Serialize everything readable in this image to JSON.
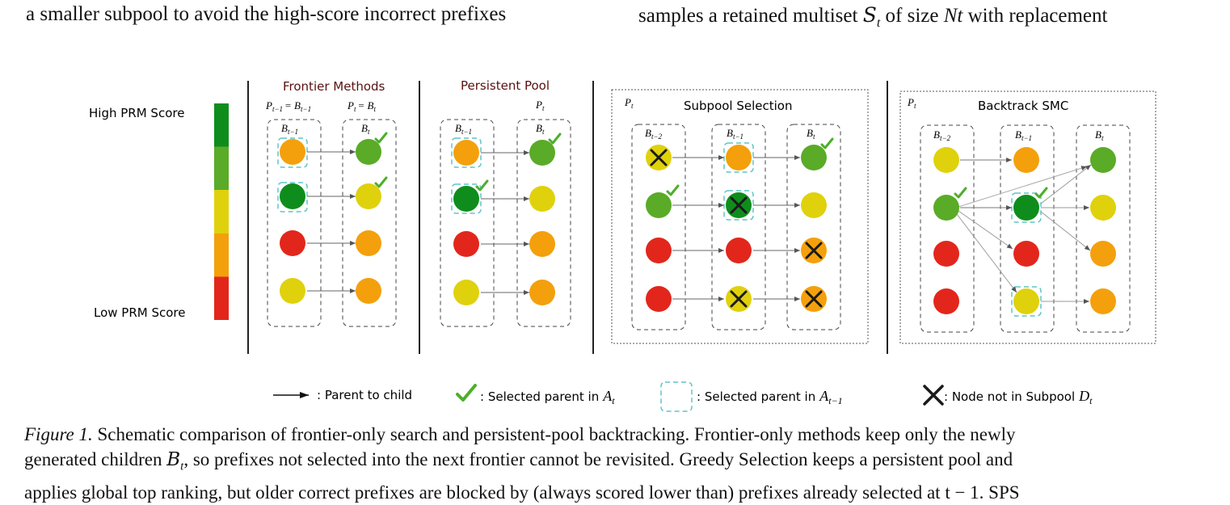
{
  "top_text": {
    "left": "a smaller subpool to avoid the high-score incorrect prefixes",
    "right_prefix": "samples a retained multiset",
    "right_S": "S",
    "right_sub_t": "t",
    "right_mid": "of size",
    "right_Nt": "Nt",
    "right_suffix": "with replacement"
  },
  "figure": {
    "scale": {
      "high_label": "High PRM Score",
      "low_label": "Low PRM Score"
    },
    "colors": {
      "dark_green": "#0f8d1c",
      "green": "#5aab27",
      "yellow": "#e0d10d",
      "orange": "#f4a00c",
      "red": "#e3261b",
      "check": "#4caf2a",
      "arrow": "#666666",
      "dashed_box": "#444444",
      "cyan": "#5ec6c6"
    },
    "panels": {
      "frontier": {
        "title": "Frontier Methods",
        "label_left": "P",
        "label_left_sub": "t−1",
        "label_left_eq": "= B",
        "label_left_eq_sub": "t−1",
        "label_right": "P",
        "label_right_sub": "t",
        "label_right_eq": "= B",
        "label_right_eq_sub": "t",
        "col1": "B",
        "col1_sub": "t−1",
        "col2": "B",
        "col2_sub": "t"
      },
      "persistent": {
        "title": "Persistent Pool",
        "pool_label": "P",
        "pool_sub": "t",
        "col1": "B",
        "col1_sub": "t−1",
        "col2": "B",
        "col2_sub": "t"
      },
      "subpool": {
        "title": "Subpool Selection",
        "pool_label": "P",
        "pool_sub": "t",
        "col1": "B",
        "col1_sub": "t−2",
        "col2": "B",
        "col2_sub": "t−1",
        "col3": "B",
        "col3_sub": "t"
      },
      "backtrack": {
        "title": "Backtrack SMC",
        "pool_label": "P",
        "pool_sub": "t",
        "col1": "B",
        "col1_sub": "t−2",
        "col2": "B",
        "col2_sub": "t−1",
        "col3": "B",
        "col3_sub": "t"
      }
    },
    "legend": {
      "arrow_label": ": Parent to child",
      "check_label": ": Selected parent in",
      "check_var": "A",
      "check_sub": "t",
      "box_label": ": Selected parent in",
      "box_var": "A",
      "box_sub": "t−1",
      "cross_label": ": Node not in Subpool",
      "cross_var": "D",
      "cross_sub": "t"
    }
  },
  "caption": {
    "label": "Figure 1.",
    "line1": "Schematic comparison of frontier-only search and persistent-pool backtracking. Frontier-only methods keep only the newly",
    "line2_a": "generated children",
    "line2_var": "B",
    "line2_sub": "t",
    "line2_b": ", so prefixes not selected into the next frontier cannot be revisited. Greedy Selection keeps a persistent pool and",
    "line3": "applies global top ranking, but older correct prefixes are blocked by (always scored lower than) prefixes already selected at t − 1. SPS"
  }
}
